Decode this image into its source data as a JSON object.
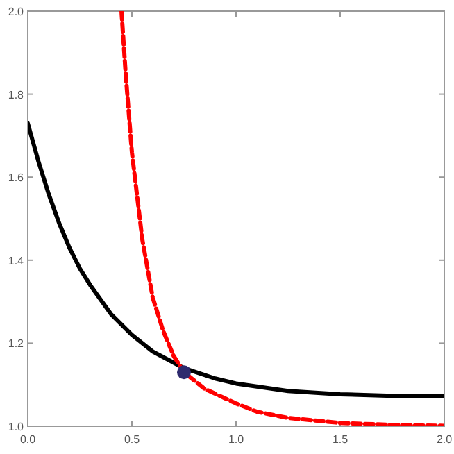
{
  "chart_data": {
    "type": "line",
    "xlim": [
      0,
      2
    ],
    "ylim": [
      1,
      2
    ],
    "xticks": [
      {
        "value": 0,
        "label": "0.0"
      },
      {
        "value": 0.5,
        "label": "0.5"
      },
      {
        "value": 1,
        "label": "1.0"
      },
      {
        "value": 1.5,
        "label": "1.5"
      },
      {
        "value": 2,
        "label": "2.0"
      }
    ],
    "yticks": [
      {
        "value": 1,
        "label": "1.0"
      },
      {
        "value": 1.2,
        "label": "1.2"
      },
      {
        "value": 1.4,
        "label": "1.4"
      },
      {
        "value": 1.6,
        "label": "1.6"
      },
      {
        "value": 1.8,
        "label": "1.8"
      },
      {
        "value": 2,
        "label": "2.0"
      }
    ],
    "grid": false,
    "series": [
      {
        "color": "#000000",
        "line_style": "solid",
        "x": [
          0,
          0.05,
          0.1,
          0.15,
          0.2,
          0.25,
          0.3,
          0.4,
          0.5,
          0.6,
          0.75,
          0.9,
          1,
          1.25,
          1.5,
          1.75,
          2
        ],
        "values": [
          1.73,
          1.64,
          1.56,
          1.49,
          1.43,
          1.38,
          1.34,
          1.27,
          1.22,
          1.18,
          1.14,
          1.115,
          1.103,
          1.085,
          1.077,
          1.073,
          1.072
        ]
      },
      {
        "color": "#ff0000",
        "line_style": "dashed",
        "x": [
          0.45,
          0.47,
          0.5,
          0.55,
          0.6,
          0.65,
          0.7,
          0.75,
          0.85,
          1,
          1.1,
          1.25,
          1.5,
          1.75,
          2
        ],
        "values": [
          2.0,
          1.85,
          1.66,
          1.45,
          1.31,
          1.23,
          1.17,
          1.13,
          1.09,
          1.055,
          1.035,
          1.02,
          1.008,
          1.003,
          1.001
        ]
      },
      {
        "type": "scatter",
        "color": "#2e2a6e",
        "marker": "circle",
        "x": [
          0.75
        ],
        "values": [
          1.13
        ]
      }
    ]
  }
}
